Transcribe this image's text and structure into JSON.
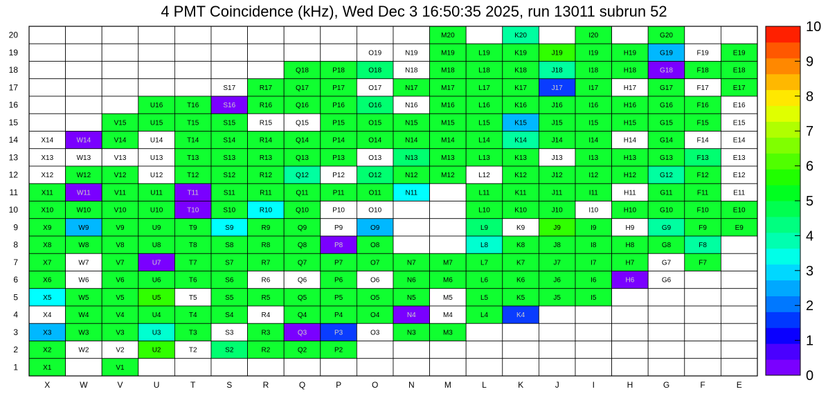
{
  "chart_data": {
    "type": "heatmap",
    "title": "4 PMT Coincidence (kHz), Wed Dec  3 16:50:35 2025, run 13011 subrun 52",
    "x_labels": [
      "X",
      "W",
      "V",
      "U",
      "T",
      "S",
      "R",
      "Q",
      "P",
      "O",
      "N",
      "M",
      "L",
      "K",
      "J",
      "I",
      "H",
      "G",
      "F",
      "E"
    ],
    "y_labels": [
      "1",
      "2",
      "3",
      "4",
      "5",
      "6",
      "7",
      "8",
      "9",
      "10",
      "11",
      "12",
      "13",
      "14",
      "15",
      "16",
      "17",
      "18",
      "19",
      "20"
    ],
    "z_range": [
      0,
      10
    ],
    "colorbar_ticks": [
      "0",
      "1",
      "2",
      "3",
      "4",
      "5",
      "6",
      "7",
      "8",
      "9",
      "10"
    ],
    "colorbar_colors": [
      "#7a00ff",
      "#4a00ff",
      "#0a00ff",
      "#0038ff",
      "#0078ff",
      "#00a8ff",
      "#00d8ff",
      "#00ffe8",
      "#00ffb0",
      "#00ff80",
      "#00ff50",
      "#00ff20",
      "#20ff00",
      "#50ff00",
      "#80ff00",
      "#b0ff00",
      "#e0ff00",
      "#ffe800",
      "#ffb800",
      "#ff8800",
      "#ff5800",
      "#ff2000"
    ],
    "cell_color_levels": {
      "w": "#ffffff",
      "p1": "#7a00ff",
      "p2": "#4a00ff",
      "b1": "#0a3cff",
      "b2": "#0058ff",
      "sb": "#00b8ff",
      "c": "#00ffff",
      "t": "#00ffd0",
      "a": "#00ffa0",
      "m": "#00ff70",
      "g": "#10ff30",
      "l": "#30ff00"
    },
    "rows": [
      {
        "y": "20",
        "cells": [
          "",
          "",
          "",
          "",
          "",
          "",
          "",
          "",
          "",
          "",
          "",
          "g:M20",
          "",
          "a:K20",
          "",
          "g:I20",
          "",
          "g:G20",
          "",
          ""
        ]
      },
      {
        "y": "19",
        "cells": [
          "",
          "",
          "",
          "",
          "",
          "",
          "",
          "",
          "",
          "w:O19",
          "w:N19",
          "g:M19",
          "g:L19",
          "g:K19",
          "l:J19",
          "g:I19",
          "g:H19",
          "sb:G19",
          "w:F19",
          "g:E19"
        ]
      },
      {
        "y": "18",
        "cells": [
          "",
          "",
          "",
          "",
          "",
          "",
          "",
          "g:Q18",
          "g:P18",
          "m:O18",
          "w:N18",
          "g:M18",
          "g:L18",
          "g:K18",
          "a:J18",
          "g:I18",
          "g:H18",
          "p1:G18",
          "g:F18",
          "g:E18"
        ]
      },
      {
        "y": "17",
        "cells": [
          "",
          "",
          "",
          "",
          "",
          "w:S17",
          "g:R17",
          "g:Q17",
          "g:P17",
          "w:O17",
          "g:N17",
          "g:M17",
          "g:L17",
          "g:K17",
          "b1:J17",
          "g:I17",
          "w:H17",
          "g:G17",
          "w:F17",
          "g:E17"
        ]
      },
      {
        "y": "16",
        "cells": [
          "",
          "",
          "",
          "g:U16",
          "g:T16",
          "p1:S16",
          "g:R16",
          "g:Q16",
          "g:P16",
          "m:O16",
          "w:N16",
          "g:M16",
          "g:L16",
          "g:K16",
          "g:J16",
          "g:I16",
          "g:H16",
          "g:G16",
          "g:F16",
          "w:E16"
        ]
      },
      {
        "y": "15",
        "cells": [
          "",
          "",
          "g:V15",
          "g:U15",
          "g:T15",
          "g:S15",
          "w:R15",
          "w:Q15",
          "g:P15",
          "g:O15",
          "g:N15",
          "g:M15",
          "g:L15",
          "sb:K15",
          "g:J15",
          "g:I15",
          "g:H15",
          "g:G15",
          "g:F15",
          "w:E15"
        ]
      },
      {
        "y": "14",
        "cells": [
          "w:X14",
          "p1:W14",
          "g:V14",
          "w:U14",
          "g:T14",
          "g:S14",
          "g:R14",
          "g:Q14",
          "g:P14",
          "g:O14",
          "g:N14",
          "g:M14",
          "g:L14",
          "a:K14",
          "g:J14",
          "g:I14",
          "w:H14",
          "g:G14",
          "w:F14",
          "w:E14"
        ]
      },
      {
        "y": "13",
        "cells": [
          "w:X13",
          "w:W13",
          "w:V13",
          "w:U13",
          "g:T13",
          "g:S13",
          "g:R13",
          "g:Q13",
          "g:P13",
          "w:O13",
          "m:N13",
          "g:M13",
          "g:L13",
          "g:K13",
          "w:J13",
          "g:I13",
          "g:H13",
          "g:G13",
          "m:F13",
          "w:E13"
        ]
      },
      {
        "y": "12",
        "cells": [
          "w:X12",
          "g:W12",
          "g:V12",
          "w:U12",
          "g:T12",
          "g:S12",
          "g:R12",
          "a:Q12",
          "w:P12",
          "m:O12",
          "g:N12",
          "g:M12",
          "w:L12",
          "g:K12",
          "g:J12",
          "g:I12",
          "g:H12",
          "a:G12",
          "g:F12",
          "w:E12"
        ]
      },
      {
        "y": "11",
        "cells": [
          "g:X11",
          "p1:W11",
          "g:V11",
          "g:U11",
          "p1:T11",
          "g:S11",
          "g:R11",
          "g:Q11",
          "g:P11",
          "g:O11",
          "c:N11",
          "",
          "g:L11",
          "g:K11",
          "g:J11",
          "g:I11",
          "w:H11",
          "g:G11",
          "g:F11",
          "w:E11"
        ]
      },
      {
        "y": "10",
        "cells": [
          "g:X10",
          "g:W10",
          "g:V10",
          "g:U10",
          "p1:T10",
          "g:S10",
          "c:R10",
          "g:Q10",
          "w:P10",
          "w:O10",
          "",
          "",
          "g:L10",
          "g:K10",
          "g:J10",
          "w:I10",
          "g:H10",
          "g:G10",
          "g:F10",
          "g:E10"
        ]
      },
      {
        "y": "9",
        "cells": [
          "g:X9",
          "sb:W9",
          "g:V9",
          "g:U9",
          "g:T9",
          "c:S9",
          "g:R9",
          "g:Q9",
          "w:P9",
          "sb:O9",
          "",
          "",
          "m:L9",
          "w:K9",
          "l:J9",
          "g:I9",
          "w:H9",
          "a:G9",
          "g:F9",
          "g:E9"
        ]
      },
      {
        "y": "8",
        "cells": [
          "g:X8",
          "g:W8",
          "g:V8",
          "g:U8",
          "g:T8",
          "g:S8",
          "g:R8",
          "g:Q8",
          "p1:P8",
          "g:O8",
          "",
          "",
          "t:L8",
          "g:K8",
          "g:J8",
          "g:I8",
          "g:H8",
          "g:G8",
          "a:F8",
          ""
        ]
      },
      {
        "y": "7",
        "cells": [
          "g:X7",
          "w:W7",
          "g:V7",
          "p1:U7",
          "g:T7",
          "g:S7",
          "g:R7",
          "g:Q7",
          "g:P7",
          "g:O7",
          "g:N7",
          "g:M7",
          "g:L7",
          "g:K7",
          "g:J7",
          "g:I7",
          "g:H7",
          "w:G7",
          "g:F7",
          ""
        ]
      },
      {
        "y": "6",
        "cells": [
          "g:X6",
          "w:W6",
          "g:V6",
          "g:U6",
          "g:T6",
          "g:S6",
          "w:R6",
          "w:Q6",
          "g:P6",
          "w:O6",
          "g:N6",
          "g:M6",
          "g:L6",
          "g:K6",
          "g:J6",
          "g:I6",
          "p1:H6",
          "w:G6",
          "",
          ""
        ]
      },
      {
        "y": "5",
        "cells": [
          "c:X5",
          "g:W5",
          "g:V5",
          "l:U5",
          "w:T5",
          "g:S5",
          "g:R5",
          "g:Q5",
          "g:P5",
          "g:O5",
          "g:N5",
          "w:M5",
          "g:L5",
          "g:K5",
          "g:J5",
          "g:I5",
          "",
          "",
          "",
          ""
        ]
      },
      {
        "y": "4",
        "cells": [
          "w:X4",
          "g:W4",
          "g:V4",
          "g:U4",
          "g:T4",
          "g:S4",
          "w:R4",
          "g:Q4",
          "g:P4",
          "g:O4",
          "p1:N4",
          "w:M4",
          "g:L4",
          "b1:K4",
          "",
          "",
          "",
          "",
          "",
          ""
        ]
      },
      {
        "y": "3",
        "cells": [
          "sb:X3",
          "g:W3",
          "g:V3",
          "t:U3",
          "g:T3",
          "w:S3",
          "g:R3",
          "p1:Q3",
          "b1:P3",
          "w:O3",
          "g:N3",
          "g:M3",
          "",
          "",
          "",
          "",
          "",
          "",
          "",
          ""
        ]
      },
      {
        "y": "2",
        "cells": [
          "g:X2",
          "w:W2",
          "w:V2",
          "l:U2",
          "w:T2",
          "m:S2",
          "g:R2",
          "g:Q2",
          "g:P2",
          "",
          "",
          "",
          "",
          "",
          "",
          "",
          "",
          "",
          "",
          ""
        ]
      },
      {
        "y": "1",
        "cells": [
          "g:X1",
          "",
          "g:V1",
          "",
          "",
          "",
          "",
          "",
          "",
          "",
          "",
          "",
          "",
          "",
          "",
          "",
          "",
          "",
          "",
          ""
        ]
      }
    ]
  }
}
